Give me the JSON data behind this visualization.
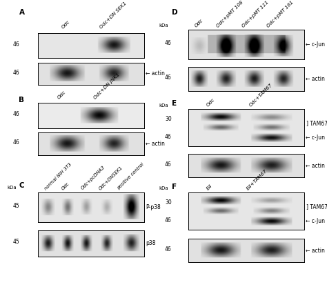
{
  "fig_width": 4.74,
  "fig_height": 4.32,
  "dpi": 100,
  "panels": {
    "A": {
      "label": "A",
      "col_labels": [
        "Odc",
        "Odc+DN SEK1"
      ],
      "kda_top": "46",
      "kda_bot": "46",
      "annotation_bot": "actin"
    },
    "B": {
      "label": "B",
      "col_labels": [
        "Odc",
        "Odc+DN JNK1"
      ],
      "kda_top": "46",
      "kda_bot": "46",
      "annotation_bot": "actin"
    },
    "C": {
      "label": "C",
      "col_labels": [
        "normal NIH 3T3",
        "Odc",
        "Odc+pcDNA3",
        "Odc+DNSEK1",
        "positive control"
      ],
      "kda_label": "kDa",
      "kda_top": "45",
      "kda_bot": "45",
      "annotation_top": "P-p38",
      "annotation_bot": "p38"
    },
    "D": {
      "label": "D",
      "col_labels": [
        "Odc",
        "Odc+pMT 108",
        "Odc+pMT 111",
        "Odc+pMT 161"
      ],
      "kda_label": "kDa",
      "kda_top": "46",
      "kda_bot": "46",
      "annotation_top": "c-Jun",
      "annotation_bot": "actin"
    },
    "E": {
      "label": "E",
      "col_labels": [
        "Odc",
        "Odc+TAM67"
      ],
      "kda_label": "kDa",
      "kda_top": "46",
      "kda_mid": "30",
      "kda_bot": "46",
      "annotation_top": "c-Jun",
      "annotation_mid": "TAM67",
      "annotation_bot": "actin"
    },
    "F": {
      "label": "F",
      "col_labels": [
        "E4",
        "E4+TAM67"
      ],
      "kda_label": "kDa",
      "kda_top": "46",
      "kda_mid": "30",
      "kda_bot": "46",
      "annotation_top": "c-Jun",
      "annotation_mid": "TAM67",
      "annotation_bot": "actin"
    }
  }
}
